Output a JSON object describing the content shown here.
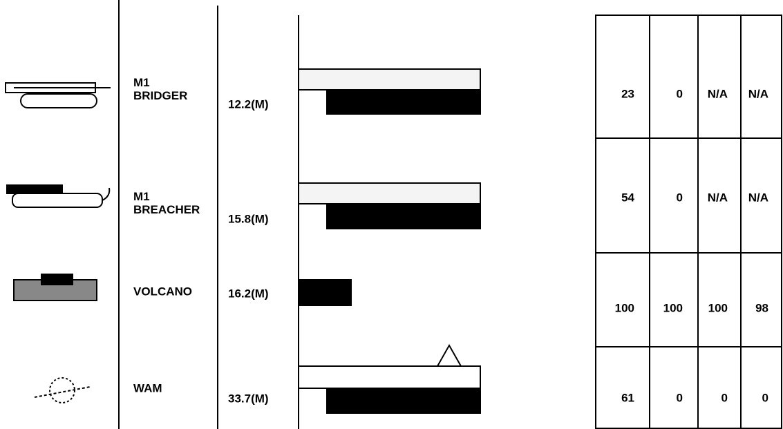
{
  "rows": [
    {
      "name": [
        "M1",
        "BRIDGER"
      ],
      "length": "12.2(M)",
      "cells": [
        23,
        0,
        "N/A",
        "N/A"
      ]
    },
    {
      "name": [
        "M1",
        "BREACHER"
      ],
      "length": "15.8(M)",
      "cells": [
        54,
        0,
        "N/A",
        "N/A"
      ]
    },
    {
      "name": [
        "VOLCANO"
      ],
      "length": "16.2(M)",
      "cells": [
        100,
        100,
        100,
        98
      ]
    },
    {
      "name": [
        "WAM"
      ],
      "length": "33.7(M)",
      "cells": [
        61,
        0,
        0,
        0
      ]
    }
  ]
}
